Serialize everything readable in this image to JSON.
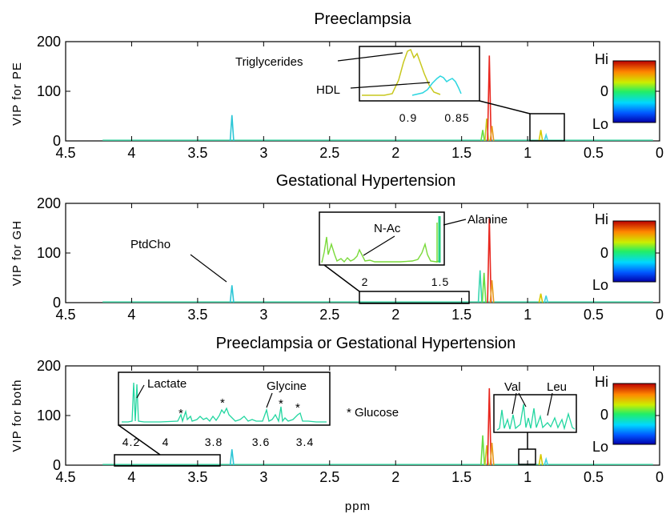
{
  "chart_data": [
    {
      "type": "line",
      "title": "Preeclampsia",
      "ylabel": "VIP for PE",
      "xlabel": "",
      "xlim": [
        4.5,
        0
      ],
      "ylim": [
        0,
        200
      ],
      "x_ticks": [
        "4.5",
        "4",
        "3.5",
        "3",
        "2.5",
        "2",
        "1.5",
        "1",
        "0.5",
        "0"
      ],
      "y_ticks": [
        "0",
        "100",
        "200"
      ],
      "peaks": [
        {
          "x": 3.24,
          "y": 52,
          "color": "#2cc6d6"
        },
        {
          "x": 1.34,
          "y": 22,
          "color": "#66dd44"
        },
        {
          "x": 1.31,
          "y": 45,
          "color": "#c8c81e"
        },
        {
          "x": 1.29,
          "y": 172,
          "color": "#e8261e"
        },
        {
          "x": 1.27,
          "y": 30,
          "color": "#e89a1e"
        },
        {
          "x": 0.9,
          "y": 22,
          "color": "#d8c800"
        },
        {
          "x": 0.86,
          "y": 12,
          "color": "#44d0e0"
        }
      ],
      "inset": {
        "labels": [
          "Triglycerides",
          "HDL"
        ],
        "ticks": [
          "0.9",
          "0.85"
        ]
      },
      "colorbar": {
        "labels": [
          "Hi",
          "0",
          "Lo"
        ]
      }
    },
    {
      "type": "line",
      "title": "Gestational Hypertension",
      "ylabel": "VIP for GH",
      "xlabel": "",
      "xlim": [
        4.5,
        0
      ],
      "ylim": [
        0,
        200
      ],
      "x_ticks": [
        "4.5",
        "4",
        "3.5",
        "3",
        "2.5",
        "2",
        "1.5",
        "1",
        "0.5",
        "0"
      ],
      "y_ticks": [
        "0",
        "100",
        "200"
      ],
      "peaks": [
        {
          "x": 3.24,
          "y": 35,
          "color": "#2cc6d6"
        },
        {
          "x": 1.36,
          "y": 65,
          "color": "#3ad6b0"
        },
        {
          "x": 1.33,
          "y": 60,
          "color": "#66dd44"
        },
        {
          "x": 1.29,
          "y": 170,
          "color": "#e8261e"
        },
        {
          "x": 1.27,
          "y": 45,
          "color": "#e89a1e"
        },
        {
          "x": 0.9,
          "y": 18,
          "color": "#d8c800"
        },
        {
          "x": 0.86,
          "y": 14,
          "color": "#44d0e0"
        }
      ],
      "inset": {
        "labels": [
          "PtdCho",
          "N-Ac",
          "Alanine"
        ],
        "ticks": [
          "2",
          "1.5"
        ]
      },
      "colorbar": {
        "labels": [
          "Hi",
          "0",
          "Lo"
        ]
      }
    },
    {
      "type": "line",
      "title": "Preeclampsia or Gestational Hypertension",
      "ylabel": "VIP for both",
      "xlabel": "ppm",
      "xlim": [
        4.5,
        0
      ],
      "ylim": [
        0,
        200
      ],
      "x_ticks": [
        "4.5",
        "4",
        "3.5",
        "3",
        "2.5",
        "2",
        "1.5",
        "1",
        "0.5",
        "0"
      ],
      "y_ticks": [
        "0",
        "100",
        "200"
      ],
      "peaks": [
        {
          "x": 3.24,
          "y": 32,
          "color": "#2cc6d6"
        },
        {
          "x": 1.34,
          "y": 60,
          "color": "#66dd44"
        },
        {
          "x": 1.31,
          "y": 40,
          "color": "#c8c81e"
        },
        {
          "x": 1.29,
          "y": 155,
          "color": "#e8261e"
        },
        {
          "x": 1.27,
          "y": 45,
          "color": "#e89a1e"
        },
        {
          "x": 0.9,
          "y": 22,
          "color": "#d8c800"
        },
        {
          "x": 0.86,
          "y": 12,
          "color": "#44d0e0"
        }
      ],
      "inset": {
        "labels": [
          "Lactate",
          "Glycine",
          "*",
          "* Glucose",
          "Val",
          "Leu"
        ],
        "ticks": [
          "4.2",
          "4",
          "3.8",
          "3.6",
          "3.4"
        ]
      },
      "colorbar": {
        "labels": [
          "Hi",
          "0",
          "Lo"
        ]
      }
    }
  ]
}
